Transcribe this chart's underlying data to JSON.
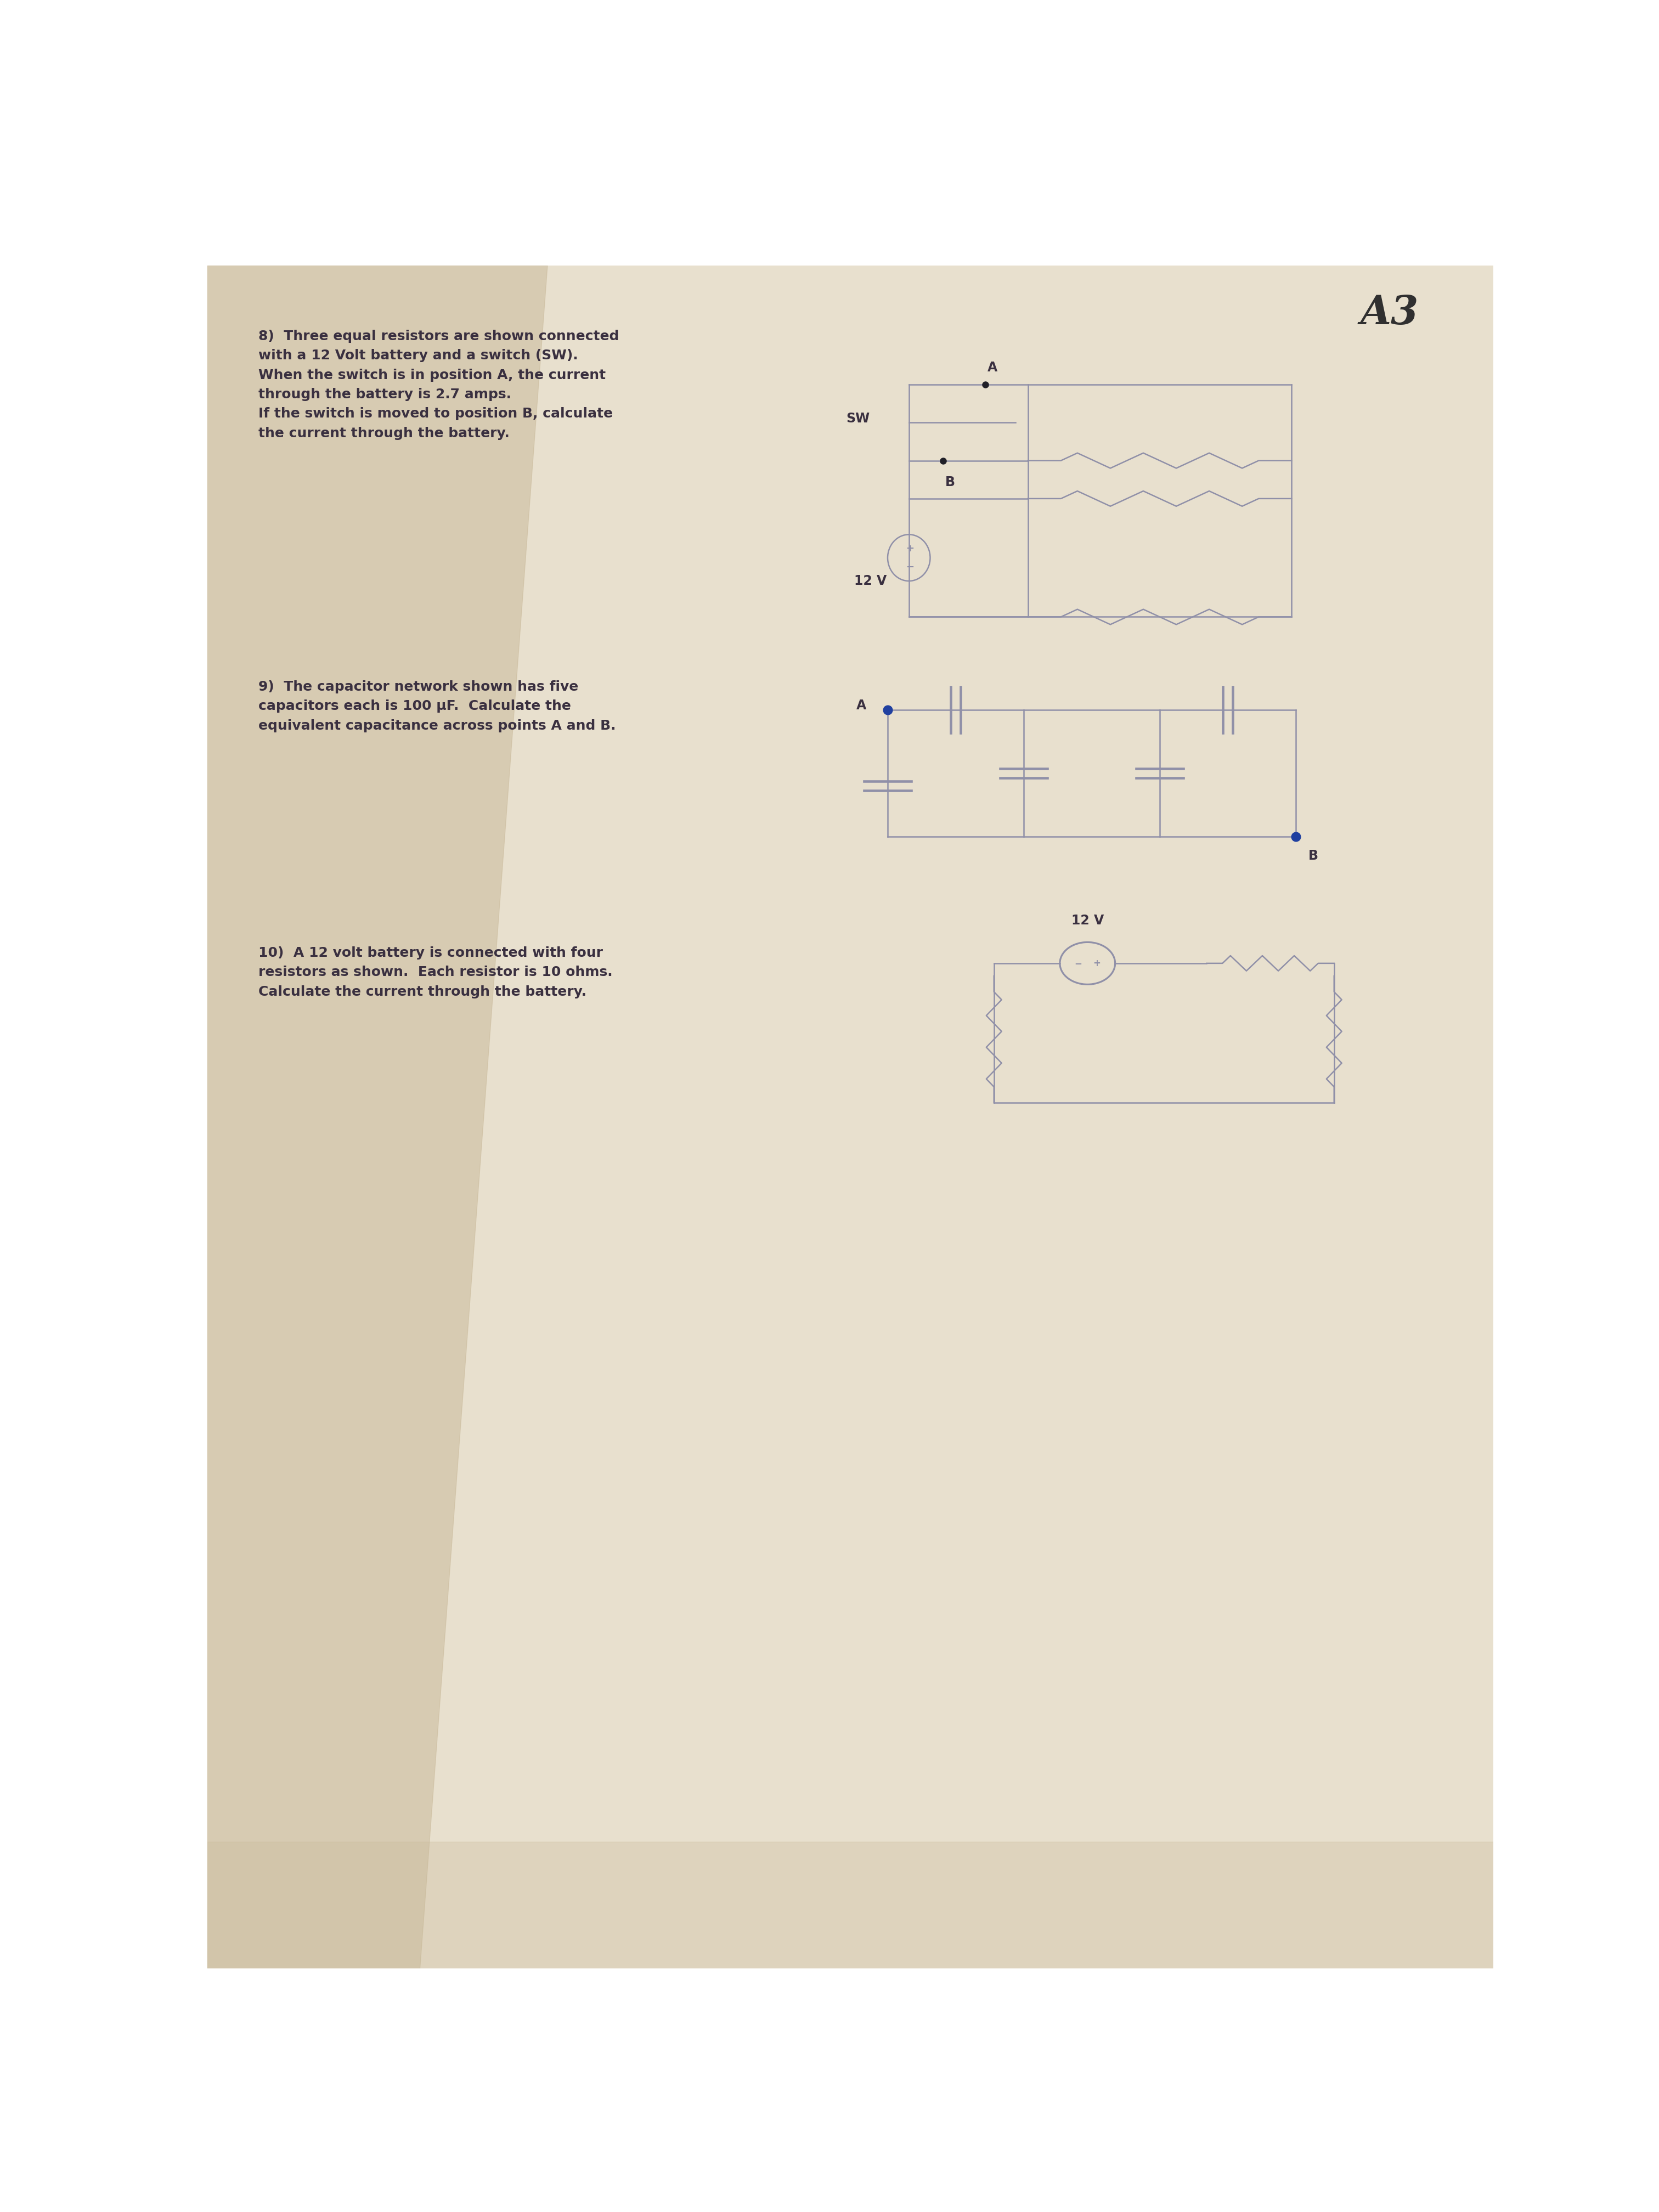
{
  "bg_color": "#ddd5c0",
  "paper_color": "#e8e0ce",
  "shadow_color": "#c8b898",
  "text_color": "#5a5060",
  "bold_text_color": "#3a3040",
  "circuit_color": "#9090a8",
  "dark_dot_color": "#202028",
  "blue_dot_color": "#2040a0",
  "title_text": "A3",
  "q8_text": "8)  Three equal resistors are shown connected\nwith a 12 Volt battery and a switch (SW).\nWhen the switch is in position A, the current\nthrough the battery is 2.7 amps.\nIf the switch is moved to position B, calculate\nthe current through the battery.",
  "q9_text": "9)  The capacitor network shown has five\ncapacitors each is 100 μF.  Calculate the\nequivalent capacitance across points A and B.",
  "q10_text": "10)  A 12 volt battery is connected with four\nresistors as shown.  Each resistor is 10 ohms.\nCalculate the current through the battery.",
  "sw_label": "SW",
  "a_label": "A",
  "b_label": "B",
  "v12_label": "12 V",
  "v12_label2": "12 V"
}
